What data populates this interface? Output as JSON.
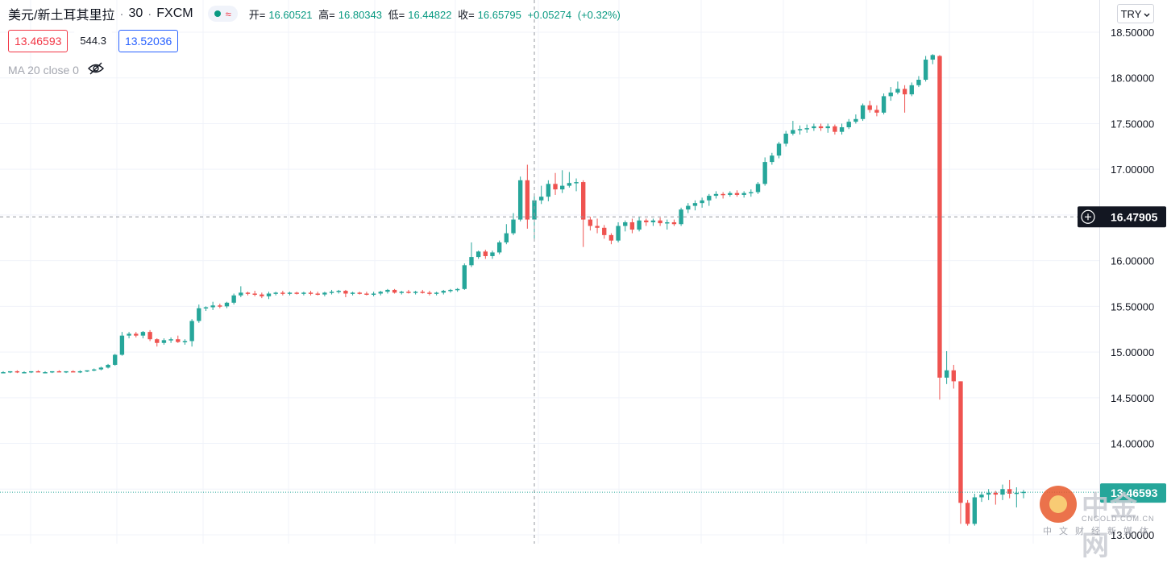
{
  "header": {
    "symbol": "美元/新土耳其里拉",
    "interval": "30",
    "source": "FXCM",
    "dot_sep": "·",
    "ohlc": {
      "open_label": "开=",
      "open": "16.60521",
      "high_label": "高=",
      "high": "16.80343",
      "low_label": "低=",
      "low": "16.44822",
      "close_label": "收=",
      "close": "16.65795",
      "change": "+0.05274",
      "change_pct": "(+0.32%)"
    }
  },
  "quote": {
    "sell": "13.46593",
    "spread": "544.3",
    "buy": "13.52036"
  },
  "indicator": {
    "label": "MA 20 close 0",
    "icon": "eye-off-icon"
  },
  "currency_button": {
    "label": "TRY",
    "icon": "chevron-down-icon"
  },
  "watermark": {
    "name": "中金网",
    "url": "CNGOLD.COM.CN",
    "subtitle": "中文财经新媒体"
  },
  "crosshair_label": "16.47905",
  "last_price_label": "13.46593",
  "colors": {
    "up": "#26a69a",
    "down": "#ef5350",
    "axis_text": "#131722",
    "grid": "#f0f3fa"
  },
  "chart_data": {
    "type": "candlestick",
    "title": "",
    "xlabel": "",
    "ylabel": "",
    "ylim": [
      12.98,
      18.6
    ],
    "y_ticks": [
      "18.50000",
      "18.00000",
      "17.50000",
      "17.00000",
      "16.50000",
      "16.00000",
      "15.50000",
      "15.00000",
      "14.50000",
      "14.00000",
      "13.50000",
      "13.00000"
    ],
    "grid": true,
    "candles": [
      [
        14.78,
        14.79,
        14.77,
        14.78
      ],
      [
        14.78,
        14.79,
        14.77,
        14.79
      ],
      [
        14.79,
        14.8,
        14.77,
        14.78
      ],
      [
        14.78,
        14.79,
        14.77,
        14.78
      ],
      [
        14.78,
        14.79,
        14.77,
        14.79
      ],
      [
        14.79,
        14.8,
        14.78,
        14.78
      ],
      [
        14.78,
        14.79,
        14.77,
        14.78
      ],
      [
        14.78,
        14.79,
        14.77,
        14.79
      ],
      [
        14.79,
        14.8,
        14.78,
        14.78
      ],
      [
        14.78,
        14.79,
        14.77,
        14.79
      ],
      [
        14.79,
        14.8,
        14.78,
        14.78
      ],
      [
        14.78,
        14.8,
        14.77,
        14.79
      ],
      [
        14.79,
        14.8,
        14.78,
        14.8
      ],
      [
        14.8,
        14.82,
        14.79,
        14.81
      ],
      [
        14.81,
        14.84,
        14.8,
        14.83
      ],
      [
        14.83,
        14.87,
        14.82,
        14.86
      ],
      [
        14.86,
        14.98,
        14.85,
        14.97
      ],
      [
        14.97,
        15.22,
        14.96,
        15.18
      ],
      [
        15.18,
        15.22,
        15.15,
        15.2
      ],
      [
        15.2,
        15.22,
        15.16,
        15.18
      ],
      [
        15.18,
        15.23,
        15.15,
        15.22
      ],
      [
        15.22,
        15.24,
        15.12,
        15.14
      ],
      [
        15.14,
        15.15,
        15.06,
        15.1
      ],
      [
        15.1,
        15.15,
        15.08,
        15.13
      ],
      [
        15.13,
        15.16,
        15.1,
        15.14
      ],
      [
        15.14,
        15.18,
        15.1,
        15.11
      ],
      [
        15.11,
        15.14,
        15.08,
        15.12
      ],
      [
        15.12,
        15.36,
        15.06,
        15.34
      ],
      [
        15.34,
        15.52,
        15.32,
        15.48
      ],
      [
        15.48,
        15.5,
        15.45,
        15.49
      ],
      [
        15.49,
        15.55,
        15.46,
        15.51
      ],
      [
        15.51,
        15.53,
        15.48,
        15.5
      ],
      [
        15.5,
        15.55,
        15.48,
        15.54
      ],
      [
        15.54,
        15.64,
        15.52,
        15.62
      ],
      [
        15.62,
        15.72,
        15.6,
        15.65
      ],
      [
        15.65,
        15.66,
        15.62,
        15.64
      ],
      [
        15.64,
        15.67,
        15.61,
        15.63
      ],
      [
        15.63,
        15.65,
        15.59,
        15.61
      ],
      [
        15.61,
        15.66,
        15.58,
        15.64
      ],
      [
        15.64,
        15.66,
        15.62,
        15.65
      ],
      [
        15.65,
        15.67,
        15.62,
        15.64
      ],
      [
        15.64,
        15.66,
        15.62,
        15.65
      ],
      [
        15.65,
        15.66,
        15.63,
        15.64
      ],
      [
        15.64,
        15.66,
        15.62,
        15.65
      ],
      [
        15.65,
        15.67,
        15.62,
        15.64
      ],
      [
        15.64,
        15.66,
        15.62,
        15.63
      ],
      [
        15.63,
        15.66,
        15.61,
        15.65
      ],
      [
        15.65,
        15.68,
        15.63,
        15.66
      ],
      [
        15.66,
        15.68,
        15.64,
        15.67
      ],
      [
        15.67,
        15.68,
        15.6,
        15.64
      ],
      [
        15.64,
        15.66,
        15.62,
        15.65
      ],
      [
        15.65,
        15.66,
        15.63,
        15.64
      ],
      [
        15.64,
        15.66,
        15.62,
        15.63
      ],
      [
        15.63,
        15.66,
        15.61,
        15.64
      ],
      [
        15.64,
        15.67,
        15.62,
        15.66
      ],
      [
        15.66,
        15.69,
        15.64,
        15.68
      ],
      [
        15.68,
        15.69,
        15.64,
        15.65
      ],
      [
        15.65,
        15.67,
        15.63,
        15.66
      ],
      [
        15.66,
        15.68,
        15.64,
        15.65
      ],
      [
        15.65,
        15.67,
        15.63,
        15.66
      ],
      [
        15.66,
        15.68,
        15.64,
        15.65
      ],
      [
        15.65,
        15.67,
        15.62,
        15.64
      ],
      [
        15.64,
        15.66,
        15.62,
        15.65
      ],
      [
        15.65,
        15.68,
        15.63,
        15.67
      ],
      [
        15.67,
        15.69,
        15.65,
        15.68
      ],
      [
        15.68,
        15.7,
        15.66,
        15.69
      ],
      [
        15.69,
        15.97,
        15.68,
        15.95
      ],
      [
        15.95,
        16.2,
        15.93,
        16.04
      ],
      [
        16.04,
        16.11,
        16.02,
        16.1
      ],
      [
        16.1,
        16.12,
        16.02,
        16.05
      ],
      [
        16.05,
        16.11,
        16.02,
        16.09
      ],
      [
        16.09,
        16.22,
        16.07,
        16.2
      ],
      [
        16.2,
        16.4,
        16.18,
        16.3
      ],
      [
        16.3,
        16.52,
        16.28,
        16.45
      ],
      [
        16.45,
        16.92,
        16.43,
        16.88
      ],
      [
        16.88,
        17.05,
        16.35,
        16.45
      ],
      [
        16.45,
        16.72,
        16.22,
        16.66
      ],
      [
        16.66,
        16.82,
        16.62,
        16.7
      ],
      [
        16.7,
        16.88,
        16.65,
        16.84
      ],
      [
        16.84,
        16.96,
        16.72,
        16.78
      ],
      [
        16.78,
        16.99,
        16.74,
        16.82
      ],
      [
        16.82,
        16.97,
        16.8,
        16.85
      ],
      [
        16.85,
        16.9,
        16.76,
        16.86
      ],
      [
        16.86,
        16.88,
        16.15,
        16.45
      ],
      [
        16.45,
        16.48,
        16.33,
        16.38
      ],
      [
        16.38,
        16.46,
        16.3,
        16.36
      ],
      [
        16.36,
        16.39,
        16.24,
        16.28
      ],
      [
        16.28,
        16.3,
        16.18,
        16.22
      ],
      [
        16.22,
        16.42,
        16.2,
        16.38
      ],
      [
        16.38,
        16.44,
        16.32,
        16.42
      ],
      [
        16.42,
        16.46,
        16.3,
        16.34
      ],
      [
        16.34,
        16.48,
        16.32,
        16.44
      ],
      [
        16.44,
        16.46,
        16.38,
        16.42
      ],
      [
        16.42,
        16.46,
        16.38,
        16.44
      ],
      [
        16.44,
        16.47,
        16.38,
        16.41
      ],
      [
        16.41,
        16.45,
        16.34,
        16.42
      ],
      [
        16.42,
        16.45,
        16.38,
        16.4
      ],
      [
        16.4,
        16.58,
        16.38,
        16.56
      ],
      [
        16.56,
        16.63,
        16.52,
        16.6
      ],
      [
        16.6,
        16.66,
        16.55,
        16.63
      ],
      [
        16.63,
        16.69,
        16.58,
        16.66
      ],
      [
        16.66,
        16.73,
        16.6,
        16.71
      ],
      [
        16.71,
        16.76,
        16.68,
        16.73
      ],
      [
        16.73,
        16.75,
        16.68,
        16.72
      ],
      [
        16.72,
        16.76,
        16.7,
        16.74
      ],
      [
        16.74,
        16.77,
        16.7,
        16.72
      ],
      [
        16.72,
        16.76,
        16.69,
        16.74
      ],
      [
        16.74,
        16.78,
        16.7,
        16.75
      ],
      [
        16.75,
        16.86,
        16.73,
        16.84
      ],
      [
        16.84,
        17.13,
        16.82,
        17.08
      ],
      [
        17.08,
        17.18,
        17.05,
        17.15
      ],
      [
        17.15,
        17.3,
        17.12,
        17.28
      ],
      [
        17.28,
        17.42,
        17.25,
        17.39
      ],
      [
        17.39,
        17.53,
        17.37,
        17.43
      ],
      [
        17.43,
        17.48,
        17.38,
        17.44
      ],
      [
        17.44,
        17.49,
        17.4,
        17.45
      ],
      [
        17.45,
        17.5,
        17.42,
        17.47
      ],
      [
        17.47,
        17.5,
        17.42,
        17.45
      ],
      [
        17.45,
        17.5,
        17.4,
        17.47
      ],
      [
        17.47,
        17.49,
        17.38,
        17.41
      ],
      [
        17.41,
        17.5,
        17.38,
        17.46
      ],
      [
        17.46,
        17.55,
        17.44,
        17.52
      ],
      [
        17.52,
        17.6,
        17.5,
        17.55
      ],
      [
        17.55,
        17.72,
        17.53,
        17.7
      ],
      [
        17.7,
        17.75,
        17.62,
        17.65
      ],
      [
        17.65,
        17.7,
        17.58,
        17.62
      ],
      [
        17.62,
        17.83,
        17.6,
        17.8
      ],
      [
        17.8,
        17.9,
        17.75,
        17.84
      ],
      [
        17.84,
        17.96,
        17.82,
        17.88
      ],
      [
        17.88,
        17.92,
        17.62,
        17.82
      ],
      [
        17.82,
        17.95,
        17.8,
        17.92
      ],
      [
        17.92,
        18.02,
        17.9,
        17.98
      ],
      [
        17.98,
        18.24,
        17.96,
        18.2
      ],
      [
        18.2,
        18.26,
        18.15,
        18.25
      ],
      [
        18.24,
        18.25,
        14.48,
        14.72
      ],
      [
        14.72,
        15.01,
        14.65,
        14.8
      ],
      [
        14.8,
        14.86,
        14.6,
        14.68
      ],
      [
        14.68,
        14.68,
        13.12,
        13.35
      ],
      [
        13.35,
        13.38,
        13.1,
        13.12
      ],
      [
        13.12,
        13.45,
        13.1,
        13.41
      ],
      [
        13.41,
        13.47,
        13.36,
        13.44
      ],
      [
        13.44,
        13.5,
        13.38,
        13.46
      ],
      [
        13.46,
        13.48,
        13.33,
        13.44
      ],
      [
        13.44,
        13.55,
        13.38,
        13.5
      ],
      [
        13.5,
        13.6,
        13.4,
        13.45
      ],
      [
        13.45,
        13.52,
        13.3,
        13.46
      ],
      [
        13.46,
        13.49,
        13.4,
        13.47
      ]
    ]
  }
}
